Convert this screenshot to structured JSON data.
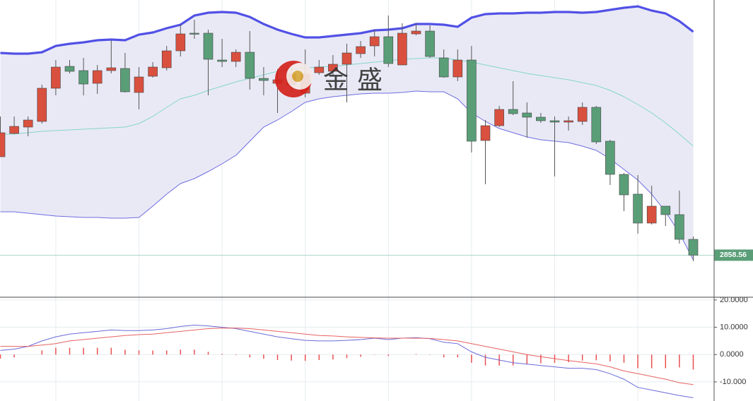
{
  "watermark": "金盛",
  "chart_data": [
    {
      "type": "candlestick",
      "ylim": [
        2800,
        3220
      ],
      "up_color": "#d9503f",
      "down_color": "#5a9e78",
      "open": [
        2998,
        3031,
        3040,
        3048,
        3095,
        3126,
        3120,
        3102,
        3120,
        3123,
        3089,
        3112,
        3124,
        3148,
        3173,
        3173,
        3135,
        3133,
        3146,
        3109,
        3102,
        3100,
        3088,
        3117,
        3119,
        3129,
        3144,
        3155,
        3168,
        3128,
        3172,
        3176,
        3138,
        3111,
        3135,
        3021,
        3042,
        3065,
        3060,
        3054,
        3049,
        3047,
        3048,
        3068,
        3020,
        2973,
        2945,
        2904,
        2928,
        2916,
        2881
      ],
      "high": [
        3055,
        3055,
        3055,
        3100,
        3135,
        3135,
        3138,
        3128,
        3163,
        3145,
        3125,
        3132,
        3155,
        3185,
        3192,
        3178,
        3165,
        3150,
        3176,
        3125,
        3122,
        3125,
        3150,
        3135,
        3142,
        3158,
        3162,
        3178,
        3198,
        3187,
        3187,
        3184,
        3150,
        3150,
        3155,
        3050,
        3070,
        3105,
        3075,
        3060,
        3055,
        3055,
        3075,
        3070,
        3022,
        2975,
        2972,
        2957,
        2928,
        2950,
        2885
      ],
      "low": [
        2998,
        3030,
        3027,
        3045,
        3085,
        3116,
        3085,
        3087,
        3116,
        3089,
        3065,
        3110,
        3120,
        3140,
        3165,
        3085,
        3125,
        3125,
        3093,
        3085,
        3060,
        3090,
        3082,
        3114,
        3112,
        3075,
        3138,
        3140,
        3125,
        3128,
        3170,
        3138,
        3110,
        3105,
        3004,
        2959,
        3040,
        3057,
        3025,
        3046,
        2970,
        3035,
        3043,
        3016,
        2958,
        2921,
        2889,
        2902,
        2900,
        2875,
        2850
      ],
      "close": [
        3032,
        3041,
        3050,
        3095,
        3125,
        3119,
        3101,
        3120,
        3124,
        3090,
        3111,
        3125,
        3148,
        3172,
        3172,
        3136,
        3133,
        3146,
        3109,
        3106,
        3107,
        3115,
        3115,
        3125,
        3129,
        3145,
        3154,
        3168,
        3130,
        3173,
        3176,
        3140,
        3111,
        3135,
        3020,
        3042,
        3065,
        3059,
        3054,
        3049,
        3047,
        3049,
        3068,
        3019,
        2973,
        2944,
        2904,
        2928,
        2916,
        2881,
        2858.56
      ],
      "bands": {
        "upper": {
          "color": "#5151e6",
          "values": [
            3145,
            3144,
            3144,
            3146,
            3155,
            3158,
            3160,
            3163,
            3164,
            3163,
            3171,
            3174,
            3180,
            3185,
            3198,
            3202,
            3203,
            3202,
            3196,
            3186,
            3178,
            3172,
            3167,
            3167,
            3169,
            3171,
            3173,
            3177,
            3178,
            3180,
            3186,
            3186,
            3185,
            3182,
            3195,
            3200,
            3201,
            3201,
            3202,
            3202,
            3203,
            3203,
            3202,
            3203,
            3206,
            3209,
            3211,
            3205,
            3201,
            3190,
            3175
          ]
        },
        "middle": {
          "color": "#86d6c8",
          "values": [
            3030,
            3030,
            3032,
            3034,
            3035,
            3036,
            3037,
            3038,
            3039,
            3040,
            3045,
            3055,
            3068,
            3080,
            3085,
            3092,
            3098,
            3104,
            3109,
            3114,
            3119,
            3122,
            3124,
            3125,
            3126,
            3128,
            3130,
            3132,
            3134,
            3136,
            3137,
            3138,
            3138,
            3135,
            3132,
            3128,
            3124,
            3120,
            3116,
            3113,
            3110,
            3107,
            3103,
            3099,
            3092,
            3083,
            3072,
            3060,
            3046,
            3030,
            3013
          ]
        },
        "lower": {
          "color": "#6d6de0",
          "values": [
            2920,
            2920,
            2918,
            2916,
            2914,
            2913,
            2912,
            2912,
            2911,
            2911,
            2912,
            2928,
            2945,
            2960,
            2967,
            2977,
            2988,
            3000,
            3020,
            3040,
            3050,
            3062,
            3075,
            3080,
            3083,
            3085,
            3087,
            3088,
            3088,
            3089,
            3091,
            3090,
            3090,
            3080,
            3060,
            3048,
            3038,
            3032,
            3026,
            3022,
            3020,
            3018,
            3013,
            3007,
            2995,
            2980,
            2965,
            2945,
            2920,
            2890,
            2852
          ]
        }
      },
      "band_fill": "#e9e9f6",
      "grid": true
    },
    {
      "type": "macd",
      "ylim": [
        -17,
        21
      ],
      "yticks": [
        {
          "value": 20,
          "label": "20.0000"
        },
        {
          "value": 10,
          "label": "10.0000"
        },
        {
          "value": 0,
          "label": "0.0000"
        },
        {
          "value": -10,
          "label": "-10.000"
        }
      ],
      "series": [
        {
          "color": "#6b6bd9",
          "values": [
            1.5,
            2,
            3,
            5,
            6.5,
            7.5,
            8,
            8.5,
            9,
            8.8,
            8.8,
            9,
            9.5,
            10.3,
            10.8,
            10.5,
            10,
            9.5,
            8.5,
            7.5,
            6.5,
            5.8,
            5.2,
            5,
            5,
            5.2,
            5.5,
            6,
            5.5,
            6,
            6.2,
            5.8,
            4.5,
            4,
            1,
            -1,
            -2,
            -3,
            -3.5,
            -4,
            -4.5,
            -5,
            -5,
            -5.5,
            -7,
            -9,
            -12,
            -13,
            -14,
            -15,
            -15.8
          ]
        },
        {
          "color": "#e86262",
          "values": [
            3,
            3,
            3,
            3.5,
            4,
            5,
            5.5,
            6,
            6.5,
            7,
            7.3,
            7.5,
            8,
            8.5,
            9,
            9.5,
            9.7,
            9.7,
            9.5,
            9,
            8.5,
            8,
            7.5,
            7,
            6.8,
            6.5,
            6.3,
            6.1,
            6,
            6,
            6,
            5.9,
            5.5,
            5,
            4,
            3,
            2,
            1,
            0,
            -0.8,
            -1.5,
            -2.2,
            -2.8,
            -3.4,
            -4.5,
            -6,
            -7,
            -8,
            -9,
            -10.3,
            -11
          ]
        }
      ],
      "histogram": {
        "color": "#e85050",
        "values": [
          -1.5,
          -1,
          0,
          1.5,
          2.5,
          2.5,
          2.5,
          2.5,
          2.5,
          1.8,
          1.5,
          1.5,
          1.5,
          1.8,
          1.8,
          1,
          0.3,
          -0.2,
          -1,
          -1.5,
          -2,
          -2.2,
          -2.3,
          -2,
          -1.8,
          -1.3,
          -0.8,
          -0.1,
          -0.5,
          0,
          0.2,
          -0.1,
          -1,
          -1,
          -3,
          -4,
          -4,
          -4,
          -3.5,
          -3.2,
          -3,
          -2.8,
          -2.2,
          -2.1,
          -2.5,
          -3,
          -5,
          -5,
          -5,
          -4.7,
          -5.5
        ]
      },
      "grid": true
    }
  ]
}
